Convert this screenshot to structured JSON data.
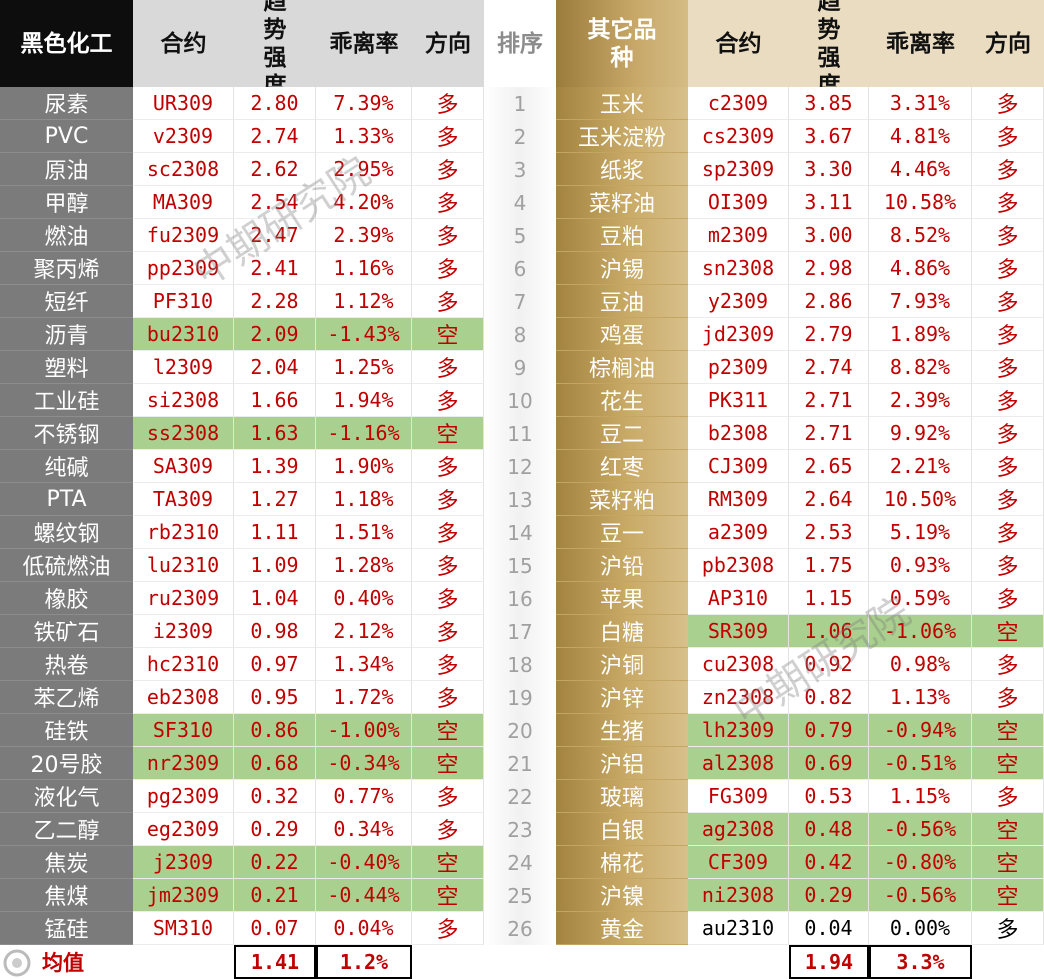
{
  "headers": {
    "left": [
      "黑色化工",
      "合约",
      "趋势强度",
      "乖离率",
      "方向"
    ],
    "rank": "排序",
    "right": [
      "其它品种",
      "合约",
      "趋势强度",
      "乖离率",
      "方向"
    ]
  },
  "left_rows": [
    [
      "尿素",
      "UR309",
      "2.80",
      "7.39%",
      "多"
    ],
    [
      "PVC",
      "v2309",
      "2.74",
      "1.33%",
      "多"
    ],
    [
      "原油",
      "sc2308",
      "2.62",
      "2.95%",
      "多"
    ],
    [
      "甲醇",
      "MA309",
      "2.54",
      "4.20%",
      "多"
    ],
    [
      "燃油",
      "fu2309",
      "2.47",
      "2.39%",
      "多"
    ],
    [
      "聚丙烯",
      "pp2309",
      "2.41",
      "1.16%",
      "多"
    ],
    [
      "短纤",
      "PF310",
      "2.28",
      "1.12%",
      "多"
    ],
    [
      "沥青",
      "bu2310",
      "2.09",
      "-1.43%",
      "空"
    ],
    [
      "塑料",
      "l2309",
      "2.04",
      "1.25%",
      "多"
    ],
    [
      "工业硅",
      "si2308",
      "1.66",
      "1.94%",
      "多"
    ],
    [
      "不锈钢",
      "ss2308",
      "1.63",
      "-1.16%",
      "空"
    ],
    [
      "纯碱",
      "SA309",
      "1.39",
      "1.90%",
      "多"
    ],
    [
      "PTA",
      "TA309",
      "1.27",
      "1.18%",
      "多"
    ],
    [
      "螺纹钢",
      "rb2310",
      "1.11",
      "1.51%",
      "多"
    ],
    [
      "低硫燃油",
      "lu2310",
      "1.09",
      "1.28%",
      "多"
    ],
    [
      "橡胶",
      "ru2309",
      "1.04",
      "0.40%",
      "多"
    ],
    [
      "铁矿石",
      "i2309",
      "0.98",
      "2.12%",
      "多"
    ],
    [
      "热卷",
      "hc2310",
      "0.97",
      "1.34%",
      "多"
    ],
    [
      "苯乙烯",
      "eb2308",
      "0.95",
      "1.72%",
      "多"
    ],
    [
      "硅铁",
      "SF310",
      "0.86",
      "-1.00%",
      "空"
    ],
    [
      "20号胶",
      "nr2309",
      "0.68",
      "-0.34%",
      "空"
    ],
    [
      "液化气",
      "pg2309",
      "0.32",
      "0.77%",
      "多"
    ],
    [
      "乙二醇",
      "eg2309",
      "0.29",
      "0.34%",
      "多"
    ],
    [
      "焦炭",
      "j2309",
      "0.22",
      "-0.40%",
      "空"
    ],
    [
      "焦煤",
      "jm2309",
      "0.21",
      "-0.44%",
      "空"
    ],
    [
      "锰硅",
      "SM310",
      "0.07",
      "0.04%",
      "多"
    ]
  ],
  "ranks": [
    "1",
    "2",
    "3",
    "4",
    "5",
    "6",
    "7",
    "8",
    "9",
    "10",
    "11",
    "12",
    "13",
    "14",
    "15",
    "16",
    "17",
    "18",
    "19",
    "20",
    "21",
    "22",
    "23",
    "24",
    "25",
    "26"
  ],
  "right_rows": [
    [
      "玉米",
      "c2309",
      "3.85",
      "3.31%",
      "多"
    ],
    [
      "玉米淀粉",
      "cs2309",
      "3.67",
      "4.81%",
      "多"
    ],
    [
      "纸浆",
      "sp2309",
      "3.30",
      "4.46%",
      "多"
    ],
    [
      "菜籽油",
      "OI309",
      "3.11",
      "10.58%",
      "多"
    ],
    [
      "豆粕",
      "m2309",
      "3.00",
      "8.52%",
      "多"
    ],
    [
      "沪锡",
      "sn2308",
      "2.98",
      "4.86%",
      "多"
    ],
    [
      "豆油",
      "y2309",
      "2.86",
      "7.93%",
      "多"
    ],
    [
      "鸡蛋",
      "jd2309",
      "2.79",
      "1.89%",
      "多"
    ],
    [
      "棕榈油",
      "p2309",
      "2.74",
      "8.82%",
      "多"
    ],
    [
      "花生",
      "PK311",
      "2.71",
      "2.39%",
      "多"
    ],
    [
      "豆二",
      "b2308",
      "2.71",
      "9.92%",
      "多"
    ],
    [
      "红枣",
      "CJ309",
      "2.65",
      "2.21%",
      "多"
    ],
    [
      "菜籽粕",
      "RM309",
      "2.64",
      "10.50%",
      "多"
    ],
    [
      "豆一",
      "a2309",
      "2.53",
      "5.19%",
      "多"
    ],
    [
      "沪铅",
      "pb2308",
      "1.75",
      "0.93%",
      "多"
    ],
    [
      "苹果",
      "AP310",
      "1.15",
      "0.59%",
      "多"
    ],
    [
      "白糖",
      "SR309",
      "1.06",
      "-1.06%",
      "空"
    ],
    [
      "沪铜",
      "cu2308",
      "0.92",
      "0.98%",
      "多"
    ],
    [
      "沪锌",
      "zn2308",
      "0.82",
      "1.13%",
      "多"
    ],
    [
      "生猪",
      "lh2309",
      "0.79",
      "-0.94%",
      "空"
    ],
    [
      "沪铝",
      "al2308",
      "0.69",
      "-0.51%",
      "空"
    ],
    [
      "玻璃",
      "FG309",
      "0.53",
      "1.15%",
      "多"
    ],
    [
      "白银",
      "ag2308",
      "0.48",
      "-0.56%",
      "空"
    ],
    [
      "棉花",
      "CF309",
      "0.42",
      "-0.80%",
      "空"
    ],
    [
      "沪镍",
      "ni2308",
      "0.29",
      "-0.56%",
      "空"
    ],
    [
      "黄金",
      "au2310",
      "0.04",
      "0.00%",
      "多"
    ]
  ],
  "left_green_rows": [
    7,
    10,
    19,
    20,
    23,
    24
  ],
  "right_green_rows": [
    16,
    19,
    20,
    22,
    23,
    24
  ],
  "right_black_rows": [
    25
  ],
  "average": {
    "label": "均值",
    "left_strength": "1.41",
    "left_deviation": "1.2%",
    "right_strength": "1.94",
    "right_deviation": "3.3%"
  },
  "watermarks": [
    "中期研究院",
    "中期研究院"
  ],
  "colors": {
    "long_text": "#c00000",
    "short_highlight": "#a9d08e",
    "left_category_bg": "#7b7b7b",
    "right_category_bg": "#c2a261"
  }
}
